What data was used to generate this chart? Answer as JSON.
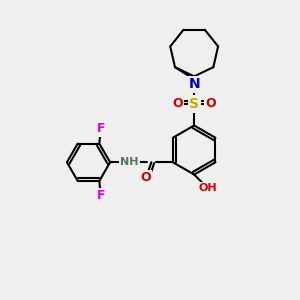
{
  "bg_color": "#efefef",
  "atom_colors": {
    "C": "#000000",
    "N": "#0000cc",
    "O": "#cc0000",
    "S": "#ccaa00",
    "F": "#dd00dd",
    "H": "#557755"
  }
}
